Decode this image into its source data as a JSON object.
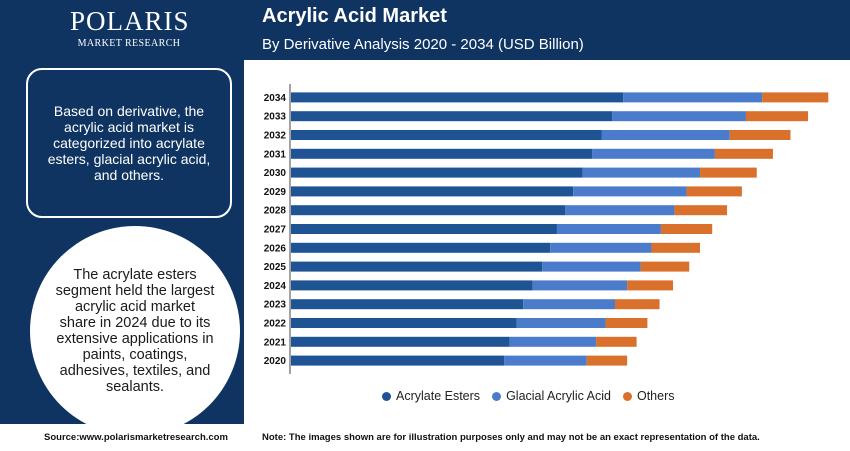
{
  "logo": {
    "brand": "POLARIS",
    "tagline": "MARKET RESEARCH"
  },
  "header": {
    "title": "Acrylic Acid Market",
    "subtitle": "By Derivative Analysis 2020 - 2034 (USD Billion)"
  },
  "info_box": {
    "text": "Based on derivative, the acrylic acid market is categorized into acrylate esters, glacial acrylic acid, and others."
  },
  "highlight": {
    "text": "The acrylate esters segment held the largest acrylic acid market share in 2024 due to its extensive applications in paints, coatings, adhesives, textiles, and sealants."
  },
  "footer": {
    "source": "Source:www.polarismarketresearch.com",
    "note": "Note: The images shown are for illustration purposes only and may not be an exact representation of the data."
  },
  "colors": {
    "background": "#0f3461",
    "acrylate_esters": "#1f5494",
    "glacial_acrylic_acid": "#4a7ccb",
    "others": "#d9702c"
  },
  "chart_data": {
    "type": "bar",
    "orientation": "horizontal",
    "stacked": true,
    "categories": [
      "2034",
      "2033",
      "2032",
      "2031",
      "2030",
      "2029",
      "2028",
      "2027",
      "2026",
      "2025",
      "2024",
      "2023",
      "2022",
      "2021",
      "2020"
    ],
    "series": [
      {
        "name": "Acrylate Esters",
        "color": "#1f5494",
        "values": [
          24.6,
          23.8,
          23.0,
          22.3,
          21.6,
          20.9,
          20.3,
          19.7,
          19.2,
          18.6,
          17.9,
          17.2,
          16.7,
          16.2,
          15.8
        ]
      },
      {
        "name": "Glacial Acrylic Acid",
        "color": "#4a7ccb",
        "values": [
          10.3,
          9.9,
          9.5,
          9.1,
          8.7,
          8.4,
          8.1,
          7.7,
          7.5,
          7.3,
          7.0,
          6.8,
          6.6,
          6.4,
          6.1
        ]
      },
      {
        "name": "Others",
        "color": "#d9702c",
        "values": [
          4.9,
          4.6,
          4.5,
          4.3,
          4.2,
          4.1,
          3.9,
          3.8,
          3.6,
          3.6,
          3.4,
          3.3,
          3.1,
          3.0,
          3.0
        ]
      }
    ],
    "legend_position": "bottom",
    "grid": false,
    "xlim": [
      0,
      40
    ]
  }
}
